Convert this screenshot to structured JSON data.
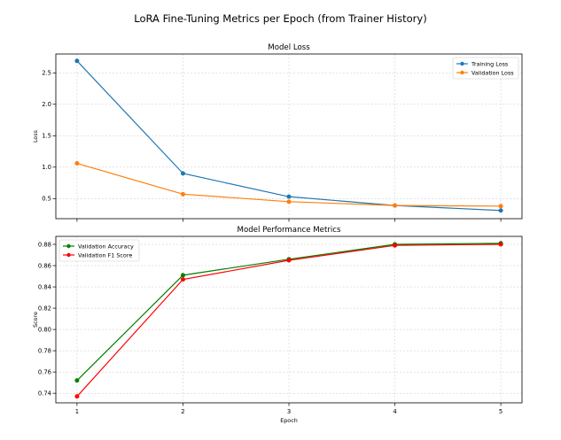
{
  "suptitle": "LoRA Fine-Tuning Metrics per Epoch (from Trainer History)",
  "chart_data": [
    {
      "type": "line",
      "title": "Model Loss",
      "xlabel": "",
      "ylabel": "Loss",
      "x": [
        1,
        2,
        3,
        4,
        5
      ],
      "xlim": [
        0.8,
        5.2
      ],
      "ylim": [
        0.18,
        2.8
      ],
      "yticks": [
        0.5,
        1.0,
        1.5,
        2.0,
        2.5
      ],
      "ytick_labels": [
        "0.5",
        "1.0",
        "1.5",
        "2.0",
        "2.5"
      ],
      "xticks": [
        1,
        2,
        3,
        4,
        5
      ],
      "xtick_labels": [
        "",
        "",
        "",
        "",
        ""
      ],
      "grid": true,
      "legend_position": "top-right",
      "series": [
        {
          "name": "Training Loss",
          "color": "#1f77b4",
          "values": [
            2.69,
            0.9,
            0.53,
            0.39,
            0.31
          ]
        },
        {
          "name": "Validation Loss",
          "color": "#ff7f0e",
          "values": [
            1.06,
            0.57,
            0.45,
            0.39,
            0.38
          ]
        }
      ]
    },
    {
      "type": "line",
      "title": "Model Performance Metrics",
      "xlabel": "Epoch",
      "ylabel": "Score",
      "x": [
        1,
        2,
        3,
        4,
        5
      ],
      "xlim": [
        0.8,
        5.2
      ],
      "ylim": [
        0.731,
        0.8875
      ],
      "yticks": [
        0.74,
        0.76,
        0.78,
        0.8,
        0.82,
        0.84,
        0.86,
        0.88
      ],
      "ytick_labels": [
        "0.74",
        "0.76",
        "0.78",
        "0.80",
        "0.82",
        "0.84",
        "0.86",
        "0.88"
      ],
      "xticks": [
        1,
        2,
        3,
        4,
        5
      ],
      "xtick_labels": [
        "1",
        "2",
        "3",
        "4",
        "5"
      ],
      "grid": true,
      "legend_position": "top-left",
      "series": [
        {
          "name": "Validation Accuracy",
          "color": "#008000",
          "values": [
            0.752,
            0.851,
            0.866,
            0.88,
            0.881
          ]
        },
        {
          "name": "Validation F1 Score",
          "color": "#ff0000",
          "values": [
            0.737,
            0.847,
            0.865,
            0.879,
            0.88
          ]
        }
      ]
    }
  ]
}
